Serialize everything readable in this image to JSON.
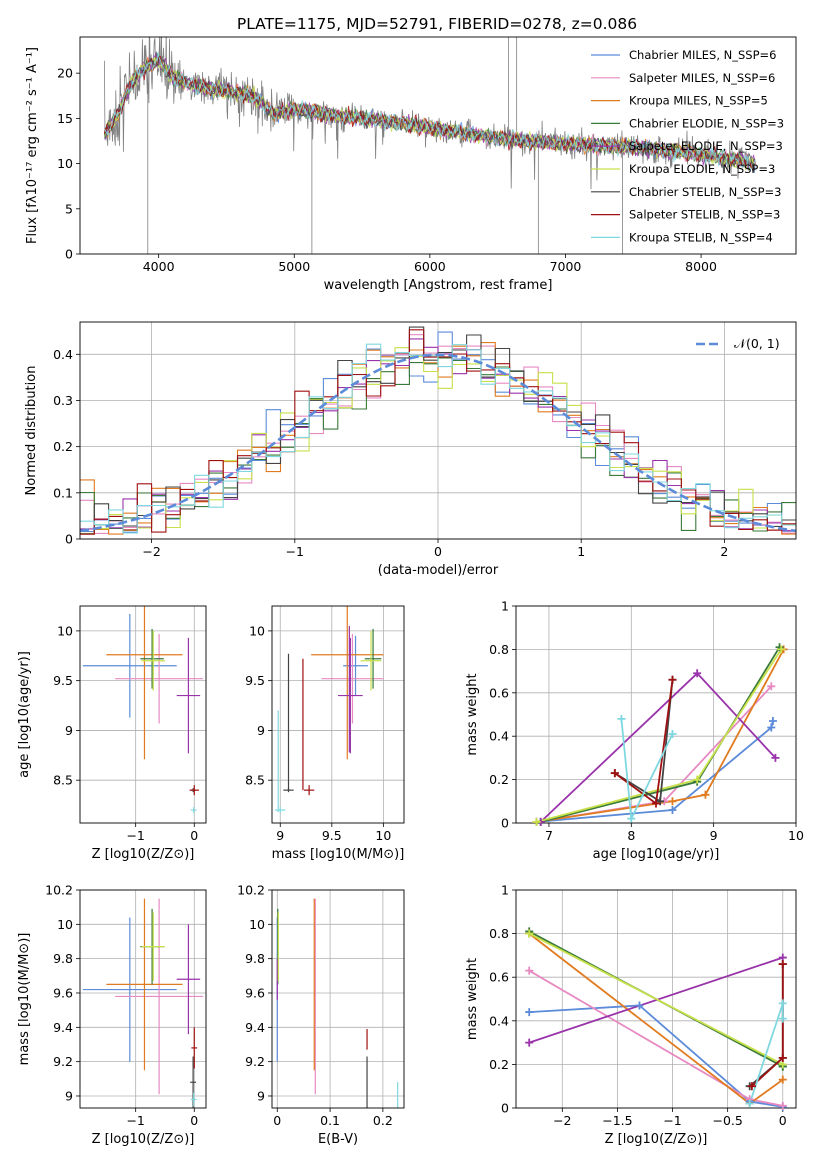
{
  "title": "PLATE=1175, MJD=52791, FIBERID=0278, z=0.086",
  "colors": {
    "chabrier_miles": "#5b8bd9",
    "salpeter_miles": "#e88ac2",
    "kroupa_miles": "#e07b20",
    "chabrier_elodie": "#3a7a3a",
    "salpeter_elodie": "#9933aa",
    "kroupa_elodie": "#c8e04a",
    "chabrier_stelib": "#444444",
    "salpeter_stelib": "#a01010",
    "kroupa_stelib": "#7fd8e0",
    "data": "#808080",
    "normal": "#5b8bd9"
  },
  "chart_data": [
    {
      "id": "spectrum",
      "type": "line",
      "xlabel": "wavelength [Angstrom, rest frame]",
      "ylabel": "Flux [fλ10⁻¹⁷ erg cm⁻² s⁻¹ A⁻¹]",
      "xlim": [
        3420,
        8700
      ],
      "ylim": [
        0,
        24
      ],
      "xticks": [
        4000,
        5000,
        6000,
        7000,
        8000
      ],
      "yticks": [
        0,
        5,
        10,
        15,
        20
      ],
      "grid": false,
      "legend_position": "top-right",
      "legend": [
        {
          "label": "Chabrier MILES, N_SSP=6",
          "color": "#5b8bd9"
        },
        {
          "label": "Salpeter MILES, N_SSP=6",
          "color": "#e88ac2"
        },
        {
          "label": "Kroupa MILES, N_SSP=5",
          "color": "#e07b20"
        },
        {
          "label": "Chabrier ELODIE, N_SSP=3",
          "color": "#3a7a3a"
        },
        {
          "label": "Salpeter ELODIE, N_SSP=3",
          "color": "#9933aa"
        },
        {
          "label": "Kroupa ELODIE, N_SSP=3",
          "color": "#c8e04a"
        },
        {
          "label": "Chabrier STELIB, N_SSP=3",
          "color": "#444444"
        },
        {
          "label": "Salpeter STELIB, N_SSP=3",
          "color": "#a01010"
        },
        {
          "label": "Kroupa STELIB, N_SSP=4",
          "color": "#7fd8e0"
        }
      ],
      "model_continuum": {
        "x": [
          3600,
          3700,
          3800,
          3900,
          4000,
          4100,
          4300,
          4500,
          4700,
          4850,
          5000,
          5200,
          5500,
          6000,
          6500,
          7000,
          7500,
          8000,
          8400
        ],
        "y": [
          13.2,
          15.5,
          19.0,
          20.5,
          21.5,
          19.5,
          18.5,
          18.0,
          17.5,
          15.5,
          16.0,
          15.5,
          15.0,
          14.0,
          12.8,
          12.2,
          11.8,
          11.0,
          10.0
        ]
      }
    },
    {
      "id": "residuals",
      "type": "line",
      "xlabel": "(data-model)/error",
      "ylabel": "Normed distribution",
      "xlim": [
        -2.5,
        2.5
      ],
      "ylim": [
        0,
        0.47
      ],
      "xticks": [
        -2,
        -1,
        0,
        1,
        2
      ],
      "yticks": [
        0.0,
        0.1,
        0.2,
        0.3,
        0.4
      ],
      "grid": true,
      "legend_position": "top-right",
      "normal_label": "𝒩(0, 1)",
      "bins": [
        -2.5,
        2.5,
        50
      ]
    },
    {
      "id": "age_vs_Z",
      "type": "scatter",
      "xlabel": "Z [log10(Z/Z⊙)]",
      "ylabel": "age  [log10(age/yr)]",
      "xlim": [
        -1.95,
        0.2
      ],
      "ylim": [
        8.07,
        10.25
      ],
      "xticks": [
        -1,
        0
      ],
      "yticks": [
        8.5,
        9.0,
        9.5,
        10.0
      ],
      "grid": true,
      "errorbars": [
        {
          "color": "#5b8bd9",
          "x": -1.1,
          "xerr": 0.8,
          "y": 9.65,
          "yerr": 0.52
        },
        {
          "color": "#e88ac2",
          "x": -0.6,
          "xerr": 0.75,
          "y": 9.52,
          "yerr": 0.45
        },
        {
          "color": "#e07b20",
          "x": -0.85,
          "xerr": 0.65,
          "y": 9.76,
          "yerr": 1.05
        },
        {
          "color": "#3a7a3a",
          "x": -0.72,
          "xerr": 0.2,
          "y": 9.72,
          "yerr": 0.3
        },
        {
          "color": "#9933aa",
          "x": -0.1,
          "xerr": 0.2,
          "y": 9.35,
          "yerr": 0.58
        },
        {
          "color": "#c8e04a",
          "x": -0.7,
          "xerr": 0.2,
          "y": 9.7,
          "yerr": 0.3
        },
        {
          "color": "#444444",
          "x": -0.02,
          "xerr": 0.05,
          "y": 8.4,
          "yerr": 0.02
        },
        {
          "color": "#a01010",
          "x": 0.0,
          "xerr": 0.08,
          "y": 8.4,
          "yerr": 0.05
        },
        {
          "color": "#7fd8e0",
          "x": -0.01,
          "xerr": 0.05,
          "y": 8.2,
          "yerr": 0.03
        }
      ]
    },
    {
      "id": "age_vs_mass",
      "type": "scatter",
      "xlabel": "mass [log10(M/M⊙)]",
      "ylabel": "",
      "xlim": [
        8.92,
        10.2
      ],
      "ylim": [
        8.07,
        10.25
      ],
      "xticks": [
        9.0,
        9.5,
        10.0
      ],
      "yticks": [
        8.5,
        9.0,
        9.5,
        10.0
      ],
      "grid": true,
      "errorbars": [
        {
          "color": "#5b8bd9",
          "x": 9.73,
          "xerr": 0.12,
          "y": 9.65,
          "yerr": 0.3
        },
        {
          "color": "#e88ac2",
          "x": 9.7,
          "xerr": 0.3,
          "y": 9.52,
          "yerr": 0.45
        },
        {
          "color": "#e07b20",
          "x": 9.65,
          "xerr": 0.35,
          "y": 9.76,
          "yerr": 1.05
        },
        {
          "color": "#3a7a3a",
          "x": 9.9,
          "xerr": 0.08,
          "y": 9.72,
          "yerr": 0.3
        },
        {
          "color": "#9933aa",
          "x": 9.68,
          "xerr": 0.12,
          "y": 9.35,
          "yerr": 0.58
        },
        {
          "color": "#c8e04a",
          "x": 9.88,
          "xerr": 0.1,
          "y": 9.7,
          "yerr": 0.3
        },
        {
          "color": "#444444",
          "x": 9.08,
          "xerr": 0.05,
          "y": 8.4,
          "yerr": 0.02
        },
        {
          "color": "#a01010",
          "x": 9.28,
          "xerr": 0.05,
          "y": 8.4,
          "yerr": 0.05
        },
        {
          "color": "#7fd8e0",
          "x": 9.0,
          "xerr": 0.05,
          "y": 8.2,
          "yerr": 0.03
        }
      ],
      "bars": [
        {
          "color": "#444444",
          "x": 9.08,
          "y0": 8.4,
          "y1": 9.77
        },
        {
          "color": "#a01010",
          "x": 9.22,
          "y0": 8.4,
          "y1": 9.72
        },
        {
          "color": "#7fd8e0",
          "x": 8.98,
          "y0": 8.18,
          "y1": 9.2
        },
        {
          "color": "#9933aa",
          "x": 9.67,
          "y0": 8.78,
          "y1": 10.05
        }
      ]
    },
    {
      "id": "weight_vs_age",
      "type": "line",
      "xlabel": "age  [log10(age/yr)]",
      "ylabel": "mass weight",
      "xlim": [
        6.6,
        10
      ],
      "ylim": [
        0,
        1
      ],
      "xticks": [
        7,
        8,
        9,
        10
      ],
      "yticks": [
        0.0,
        0.2,
        0.4,
        0.6,
        0.8,
        1.0
      ],
      "grid": true,
      "series": [
        {
          "color": "#5b8bd9",
          "x": [
            6.85,
            8.5,
            9.7,
            9.72
          ],
          "y": [
            0.005,
            0.06,
            0.44,
            0.47
          ]
        },
        {
          "color": "#e88ac2",
          "x": [
            6.85,
            8.4,
            9.7
          ],
          "y": [
            0.005,
            0.1,
            0.63
          ]
        },
        {
          "color": "#e07b20",
          "x": [
            6.85,
            8.5,
            8.9,
            9.85
          ],
          "y": [
            0.005,
            0.1,
            0.13,
            0.8
          ]
        },
        {
          "color": "#3a7a3a",
          "x": [
            6.9,
            8.8,
            9.8
          ],
          "y": [
            0.005,
            0.19,
            0.81
          ]
        },
        {
          "color": "#9933aa",
          "x": [
            6.9,
            8.8,
            9.75
          ],
          "y": [
            0.005,
            0.69,
            0.3
          ]
        },
        {
          "color": "#c8e04a",
          "x": [
            6.85,
            8.8,
            9.82
          ],
          "y": [
            0.005,
            0.2,
            0.8
          ]
        },
        {
          "color": "#444444",
          "x": [
            7.8,
            8.35,
            8.5
          ],
          "y": [
            0.23,
            0.1,
            0.66
          ]
        },
        {
          "color": "#a01010",
          "x": [
            7.8,
            8.3,
            8.5
          ],
          "y": [
            0.23,
            0.09,
            0.66
          ]
        },
        {
          "color": "#7fd8e0",
          "x": [
            7.88,
            8.0,
            8.5
          ],
          "y": [
            0.48,
            0.02,
            0.41
          ]
        }
      ]
    },
    {
      "id": "mass_vs_Z",
      "type": "scatter",
      "xlabel": "Z [log10(Z/Z⊙)]",
      "ylabel": "mass [log10(M/M⊙)]",
      "xlim": [
        -1.95,
        0.2
      ],
      "ylim": [
        8.93,
        10.2
      ],
      "xticks": [
        -1,
        0
      ],
      "yticks": [
        9.0,
        9.2,
        9.4,
        9.6,
        9.8,
        10.0,
        10.2
      ],
      "grid": true,
      "errorbars": [
        {
          "color": "#5b8bd9",
          "x": -1.1,
          "xerr": 0.8,
          "y": 9.62,
          "yerr": 0.42
        },
        {
          "color": "#e88ac2",
          "x": -0.6,
          "xerr": 0.75,
          "y": 9.58,
          "yerr": 0.57
        },
        {
          "color": "#e07b20",
          "x": -0.85,
          "xerr": 0.65,
          "y": 9.65,
          "yerr": 0.5
        },
        {
          "color": "#3a7a3a",
          "x": -0.72,
          "xerr": 0.2,
          "y": 9.87,
          "yerr": 0.22
        },
        {
          "color": "#9933aa",
          "x": -0.1,
          "xerr": 0.2,
          "y": 9.68,
          "yerr": 0.32
        },
        {
          "color": "#c8e04a",
          "x": -0.7,
          "xerr": 0.2,
          "y": 9.87,
          "yerr": 0.2
        },
        {
          "color": "#444444",
          "x": -0.02,
          "xerr": 0.05,
          "y": 9.08,
          "yerr": 0.15
        },
        {
          "color": "#a01010",
          "x": 0.0,
          "xerr": 0.05,
          "y": 9.28,
          "yerr": 0.12
        },
        {
          "color": "#7fd8e0",
          "x": -0.01,
          "xerr": 0.05,
          "y": 8.98,
          "yerr": 0.04
        }
      ]
    },
    {
      "id": "mass_vs_EBV",
      "type": "scatter",
      "xlabel": "E(B-V)",
      "ylabel": "",
      "xlim": [
        -0.01,
        0.24
      ],
      "ylim": [
        8.93,
        10.2
      ],
      "xticks": [
        0.0,
        0.1,
        0.2
      ],
      "yticks": [
        9.0,
        9.2,
        9.4,
        9.6,
        9.8,
        10.0,
        10.2
      ],
      "grid": true,
      "errorbars": [
        {
          "color": "#5b8bd9",
          "x": 0.0,
          "xerr": 0.0,
          "y": 9.62,
          "yerr": 0.42
        },
        {
          "color": "#e88ac2",
          "x": 0.072,
          "xerr": 0.0,
          "y": 9.58,
          "yerr": 0.57
        },
        {
          "color": "#e07b20",
          "x": 0.07,
          "xerr": 0.0,
          "y": 9.65,
          "yerr": 0.5
        },
        {
          "color": "#3a7a3a",
          "x": 0.001,
          "xerr": 0.0,
          "y": 9.87,
          "yerr": 0.22
        },
        {
          "color": "#9933aa",
          "x": 0.0,
          "xerr": 0.0,
          "y": 9.68,
          "yerr": 0.12
        },
        {
          "color": "#c8e04a",
          "x": 0.002,
          "xerr": 0.0,
          "y": 9.87,
          "yerr": 0.2
        },
        {
          "color": "#444444",
          "x": 0.17,
          "xerr": 0.0,
          "y": 9.08,
          "yerr": 0.15
        },
        {
          "color": "#a01010",
          "x": 0.17,
          "xerr": 0.0,
          "y": 9.33,
          "yerr": 0.06
        },
        {
          "color": "#7fd8e0",
          "x": 0.228,
          "xerr": 0.0,
          "y": 9.0,
          "yerr": 0.08
        }
      ]
    },
    {
      "id": "weight_vs_Z",
      "type": "line",
      "xlabel": "Z [log10(Z/Z⊙)]",
      "ylabel": "mass weight",
      "xlim": [
        -2.42,
        0.12
      ],
      "ylim": [
        0,
        1
      ],
      "xticks": [
        -2.0,
        -1.5,
        -1.0,
        -0.5,
        0.0
      ],
      "yticks": [
        0.0,
        0.2,
        0.4,
        0.6,
        0.8,
        1.0
      ],
      "grid": true,
      "series": [
        {
          "color": "#5b8bd9",
          "x": [
            -2.3,
            -1.3,
            -0.3,
            0.0
          ],
          "y": [
            0.44,
            0.47,
            0.03,
            0.005
          ]
        },
        {
          "color": "#e88ac2",
          "x": [
            -2.3,
            -0.3,
            0.0
          ],
          "y": [
            0.63,
            0.04,
            0.01
          ]
        },
        {
          "color": "#e07b20",
          "x": [
            -2.3,
            -0.3,
            0.0
          ],
          "y": [
            0.8,
            0.02,
            0.13
          ]
        },
        {
          "color": "#3a7a3a",
          "x": [
            -2.3,
            0.0,
            0.0
          ],
          "y": [
            0.81,
            0.19,
            0.19
          ]
        },
        {
          "color": "#9933aa",
          "x": [
            -2.3,
            0.0
          ],
          "y": [
            0.3,
            0.69
          ]
        },
        {
          "color": "#c8e04a",
          "x": [
            -2.3,
            0.0
          ],
          "y": [
            0.8,
            0.2
          ]
        },
        {
          "color": "#444444",
          "x": [
            -0.3,
            0.0,
            0.0
          ],
          "y": [
            0.1,
            0.23,
            0.66
          ]
        },
        {
          "color": "#a01010",
          "x": [
            -0.28,
            0.0,
            0.0
          ],
          "y": [
            0.1,
            0.23,
            0.66
          ]
        },
        {
          "color": "#7fd8e0",
          "x": [
            -0.3,
            0.0,
            0.0
          ],
          "y": [
            0.02,
            0.48,
            0.41
          ]
        }
      ]
    }
  ]
}
